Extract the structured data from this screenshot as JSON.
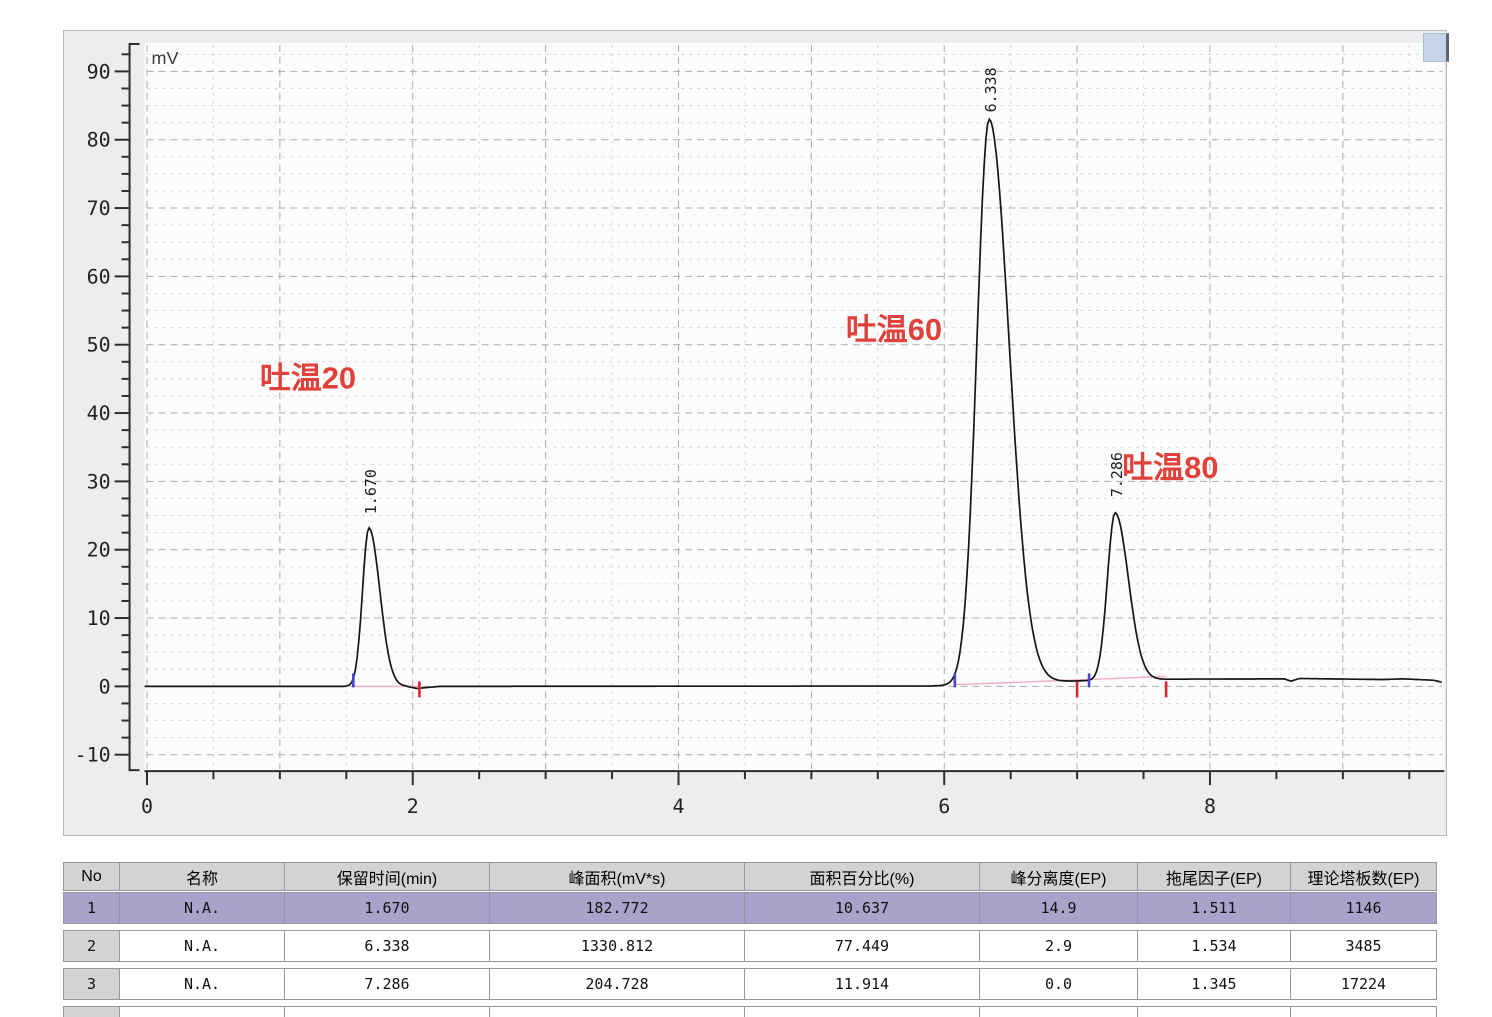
{
  "chart_data": {
    "type": "line",
    "title": "",
    "xlabel": "",
    "ylabel": "mV",
    "xlim": [
      -0.02,
      9.76
    ],
    "ylim": [
      -12.5,
      94.2
    ],
    "grid": "dashed",
    "x_major_ticks": [
      0,
      2,
      4,
      6,
      8
    ],
    "x_minor_step": 0.5,
    "y_major_ticks": [
      -10,
      0,
      10,
      20,
      30,
      40,
      50,
      60,
      70,
      80,
      90
    ],
    "y_minor_step": 2.5,
    "trace_color": "#151515",
    "annotation_color": "#e0413b",
    "integration_baseline_color": "#f2aebe",
    "start_marker_color": "#4444cc",
    "end_marker_color": "#dd2233",
    "peaks": [
      {
        "name": "吐温20",
        "rt": 1.67,
        "apex_mV": 23.2,
        "sigma_left": 0.048,
        "sigma_right": 0.082
      },
      {
        "name": "吐温60",
        "rt": 6.338,
        "apex_mV": 82.6,
        "sigma_left": 0.092,
        "sigma_right": 0.15
      },
      {
        "name": "吐温80",
        "rt": 7.286,
        "apex_mV": 24.5,
        "sigma_left": 0.058,
        "sigma_right": 0.1
      }
    ],
    "peak_labels": [
      {
        "text": "1.670",
        "rt": 1.67,
        "bottom_mV": 25.2
      },
      {
        "text": "6.338",
        "rt": 6.338,
        "bottom_mV": 84.0
      },
      {
        "text": "7.286",
        "rt": 7.286,
        "bottom_mV": 27.7
      }
    ],
    "annotations": [
      {
        "text": "吐温20",
        "t": 0.85,
        "mV": 43.6
      },
      {
        "text": "吐温60",
        "t": 5.26,
        "mV": 50.7
      },
      {
        "text": "吐温80",
        "t": 7.34,
        "mV": 30.5
      }
    ],
    "baseline_points": [
      [
        0,
        0
      ],
      [
        1.95,
        0
      ],
      [
        2.03,
        -0.3
      ],
      [
        2.2,
        0
      ],
      [
        5.9,
        0.05
      ],
      [
        6.35,
        0.4
      ],
      [
        7.0,
        0.8
      ],
      [
        7.7,
        1.05
      ],
      [
        8.56,
        1.1
      ],
      [
        8.61,
        0.75
      ],
      [
        8.67,
        1.15
      ],
      [
        9.3,
        1.0
      ],
      [
        9.45,
        1.1
      ],
      [
        9.68,
        0.9
      ],
      [
        9.76,
        0.55
      ]
    ],
    "integration_baselines": [
      {
        "from_t": 1.553,
        "from_mV": 0,
        "to_t": 2.05,
        "to_mV": 0
      },
      {
        "from_t": 6.08,
        "from_mV": 0.25,
        "to_t": 7.67,
        "to_mV": 1.45
      }
    ],
    "start_markers_t": [
      1.553,
      6.08,
      7.09
    ],
    "end_markers_t": [
      2.05,
      7.0,
      7.67
    ]
  },
  "table": {
    "headers": [
      "No",
      "名称",
      "保留时间(min)",
      "峰面积(mV*s)",
      "面积百分比(%)",
      "峰分离度(EP)",
      "拖尾因子(EP)",
      "理论塔板数(EP)"
    ],
    "rows": [
      [
        "1",
        "N.A.",
        "1.670",
        "182.772",
        "10.637",
        "14.9",
        "1.511",
        "1146"
      ],
      [
        "2",
        "N.A.",
        "6.338",
        "1330.812",
        "77.449",
        "2.9",
        "1.534",
        "3485"
      ],
      [
        "3",
        "N.A.",
        "7.286",
        "204.728",
        "11.914",
        "0.0",
        "1.345",
        "17224"
      ]
    ],
    "selected_row_index": 0,
    "highlight_color": "#a9a2cb",
    "header_bg": "#d3d3d3"
  }
}
